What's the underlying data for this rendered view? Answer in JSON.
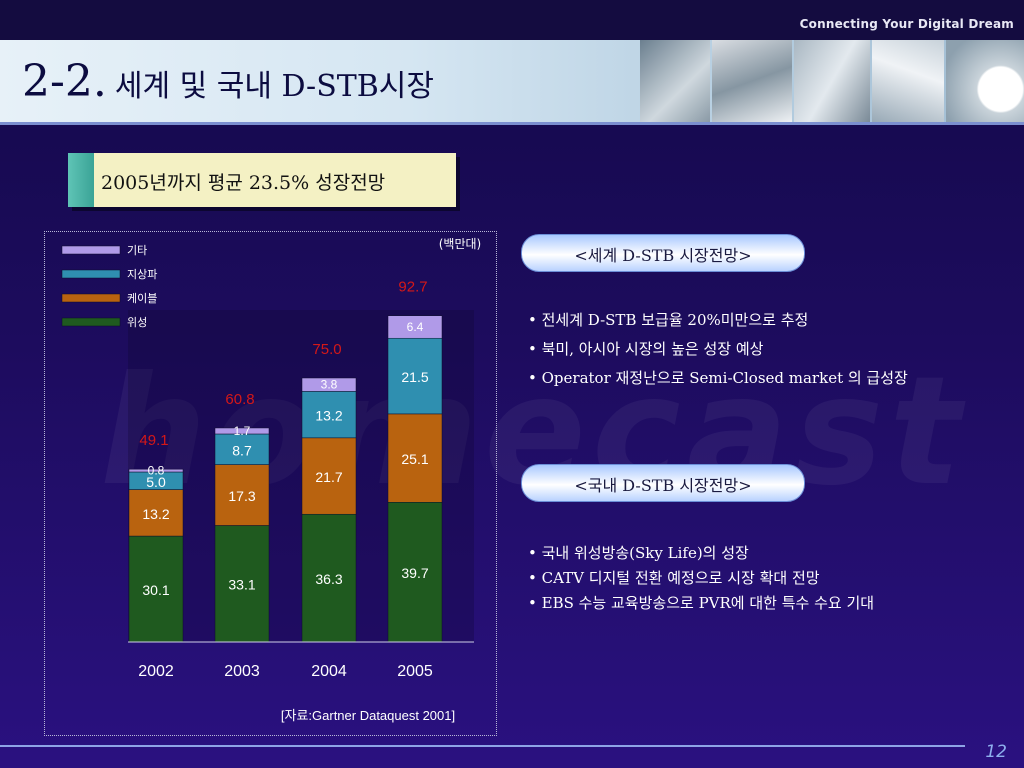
{
  "header": {
    "tagline": "Connecting Your Digital Dream",
    "title_number": "2-2.",
    "title_text": "세계 및 국내 D-STB시장"
  },
  "subtitle": "2005년까지 평균 23.5% 성장전망",
  "watermark": "homecast",
  "chart_data": {
    "type": "bar",
    "stacked": true,
    "unit": "(백만대)",
    "categories": [
      "2002",
      "2003",
      "2004",
      "2005"
    ],
    "series": [
      {
        "name": "위성",
        "color": "#1f5a1f",
        "values": [
          30.1,
          33.1,
          36.3,
          39.7
        ]
      },
      {
        "name": "케이블",
        "color": "#b9630f",
        "values": [
          13.2,
          17.3,
          21.7,
          25.1
        ]
      },
      {
        "name": "지상파",
        "color": "#2f8fb0",
        "values": [
          5.0,
          8.7,
          13.2,
          21.5
        ]
      },
      {
        "name": "기타",
        "color": "#b09ae8",
        "values": [
          0.8,
          1.7,
          3.8,
          6.4
        ]
      }
    ],
    "totals": [
      "49.1",
      "60.8",
      "75.0",
      "92.7"
    ],
    "source": "[자료:Gartner Dataquest 2001]",
    "legend_position": "top-left"
  },
  "world_section": {
    "heading": "<세계 D-STB 시장전망>",
    "bullets": [
      "• 전세계 D-STB 보급율 20%미만으로 추정",
      "• 북미, 아시아  시장의 높은 성장 예상",
      "• Operator 재정난으로 Semi-Closed market 의 급성장"
    ]
  },
  "domestic_section": {
    "heading": "<국내 D-STB 시장전망>",
    "bullets": [
      "• 국내 위성방송(Sky Life)의 성장",
      "• CATV 디지털 전환 예정으로 시장 확대 전망",
      "• EBS 수능 교육방송으로 PVR에 대한 특수 수요 기대"
    ]
  },
  "page_number": "12",
  "colors": {
    "background": "#1d0c5e",
    "total_label": "#d41818",
    "pill_border": "#6c8fd8"
  }
}
